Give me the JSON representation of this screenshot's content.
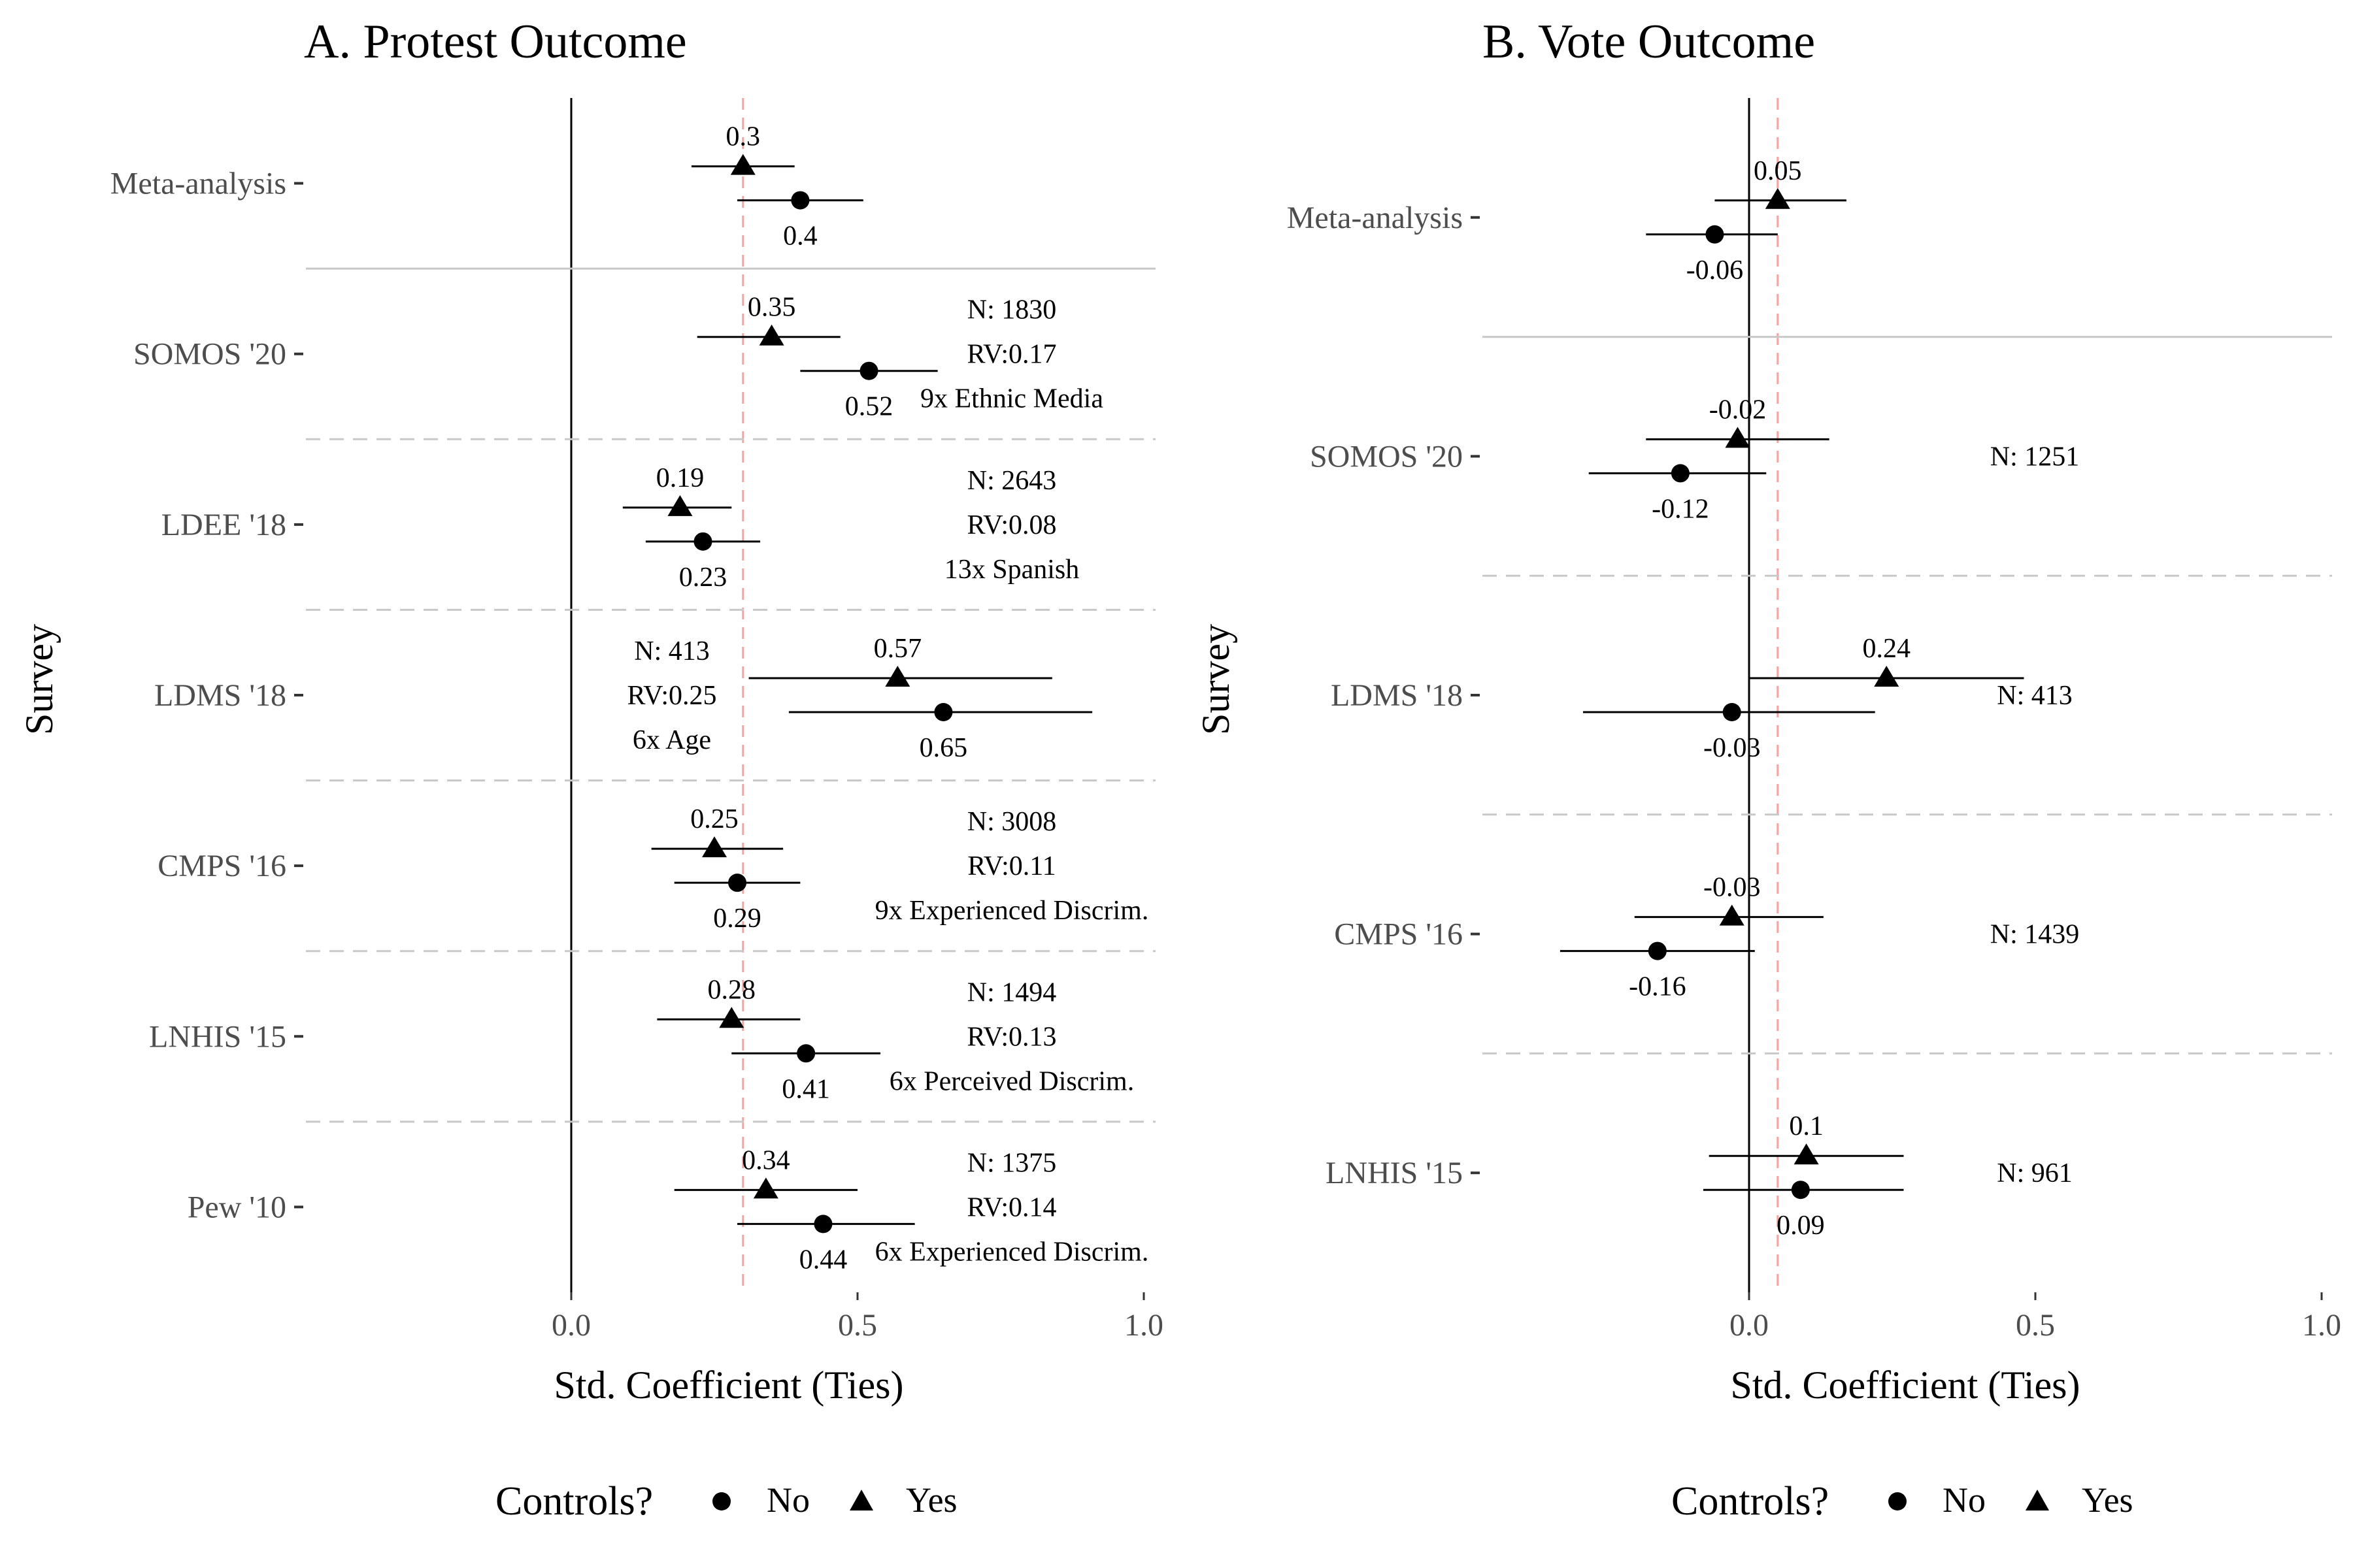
{
  "legend": {
    "title": "Controls?",
    "items": [
      {
        "label": "No",
        "shape": "circle"
      },
      {
        "label": "Yes",
        "shape": "triangle"
      }
    ]
  },
  "colors": {
    "points": "#000000",
    "reference_line": "#f4a3a3",
    "separator_solid": "#c8c8c8",
    "separator_dashed": "#c8c8c8",
    "zero_line": "#000000"
  },
  "chart_data": [
    {
      "type": "forest",
      "title": "A. Protest Outcome",
      "xlabel": "Std. Coefficient (Ties)",
      "ylabel": "Survey",
      "xlim": [
        -0.47,
        1.02
      ],
      "xticks": [
        "0.0",
        "0.5",
        "1.0"
      ],
      "reference_line": 0.3,
      "rows": [
        {
          "survey": "Meta-analysis",
          "yes": {
            "estimate": 0.3,
            "ci": [
              0.21,
              0.39
            ],
            "label": "0.3"
          },
          "no": {
            "estimate": 0.4,
            "ci": [
              0.29,
              0.51
            ],
            "label": "0.4"
          },
          "notes": []
        },
        {
          "survey": "SOMOS '20",
          "yes": {
            "estimate": 0.35,
            "ci": [
              0.22,
              0.47
            ],
            "label": "0.35"
          },
          "no": {
            "estimate": 0.52,
            "ci": [
              0.4,
              0.64
            ],
            "label": "0.52"
          },
          "notes": [
            "N: 1830",
            "RV:0.17",
            "9x Ethnic Media"
          ]
        },
        {
          "survey": "LDEE '18",
          "yes": {
            "estimate": 0.19,
            "ci": [
              0.09,
              0.28
            ],
            "label": "0.19"
          },
          "no": {
            "estimate": 0.23,
            "ci": [
              0.13,
              0.33
            ],
            "label": "0.23"
          },
          "notes": [
            "N: 2643",
            "RV:0.08",
            "13x Spanish"
          ]
        },
        {
          "survey": "LDMS '18",
          "yes": {
            "estimate": 0.57,
            "ci": [
              0.31,
              0.84
            ],
            "label": "0.57"
          },
          "no": {
            "estimate": 0.65,
            "ci": [
              0.38,
              0.91
            ],
            "label": "0.65"
          },
          "notes": [
            "N: 413",
            "RV:0.25",
            "6x Age"
          ]
        },
        {
          "survey": "CMPS '16",
          "yes": {
            "estimate": 0.25,
            "ci": [
              0.14,
              0.37
            ],
            "label": "0.25"
          },
          "no": {
            "estimate": 0.29,
            "ci": [
              0.18,
              0.4
            ],
            "label": "0.29"
          },
          "notes": [
            "N: 3008",
            "RV:0.11",
            "9x Experienced Discrim."
          ]
        },
        {
          "survey": "LNHIS '15",
          "yes": {
            "estimate": 0.28,
            "ci": [
              0.15,
              0.4
            ],
            "label": "0.28"
          },
          "no": {
            "estimate": 0.41,
            "ci": [
              0.28,
              0.54
            ],
            "label": "0.41"
          },
          "notes": [
            "N: 1494",
            "RV:0.13",
            "6x Perceived Discrim."
          ]
        },
        {
          "survey": "Pew '10",
          "yes": {
            "estimate": 0.34,
            "ci": [
              0.18,
              0.5
            ],
            "label": "0.34"
          },
          "no": {
            "estimate": 0.44,
            "ci": [
              0.29,
              0.6
            ],
            "label": "0.44"
          },
          "notes": [
            "N: 1375",
            "RV:0.14",
            "6x Experienced Discrim."
          ]
        }
      ]
    },
    {
      "type": "forest",
      "title": "B. Vote Outcome",
      "xlabel": "Std. Coefficient (Ties)",
      "ylabel": "Survey",
      "xlim": [
        -0.47,
        1.02
      ],
      "xticks": [
        "0.0",
        "0.5",
        "1.0"
      ],
      "reference_line": 0.05,
      "rows": [
        {
          "survey": "Meta-analysis",
          "yes": {
            "estimate": 0.05,
            "ci": [
              -0.06,
              0.17
            ],
            "label": "0.05"
          },
          "no": {
            "estimate": -0.06,
            "ci": [
              -0.18,
              0.05
            ],
            "label": "-0.06"
          },
          "notes": []
        },
        {
          "survey": "SOMOS '20",
          "yes": {
            "estimate": -0.02,
            "ci": [
              -0.18,
              0.14
            ],
            "label": "-0.02"
          },
          "no": {
            "estimate": -0.12,
            "ci": [
              -0.28,
              0.03
            ],
            "label": "-0.12"
          },
          "notes": [
            "N: 1251"
          ]
        },
        {
          "survey": "LDMS '18",
          "yes": {
            "estimate": 0.24,
            "ci": [
              0.0,
              0.48
            ],
            "label": "0.24"
          },
          "no": {
            "estimate": -0.03,
            "ci": [
              -0.29,
              0.22
            ],
            "label": "-0.03"
          },
          "notes": [
            "N: 413"
          ]
        },
        {
          "survey": "CMPS '16",
          "yes": {
            "estimate": -0.03,
            "ci": [
              -0.2,
              0.13
            ],
            "label": "-0.03"
          },
          "no": {
            "estimate": -0.16,
            "ci": [
              -0.33,
              0.01
            ],
            "label": "-0.16"
          },
          "notes": [
            "N: 1439"
          ]
        },
        {
          "survey": "LNHIS '15",
          "yes": {
            "estimate": 0.1,
            "ci": [
              -0.07,
              0.27
            ],
            "label": "0.1"
          },
          "no": {
            "estimate": 0.09,
            "ci": [
              -0.08,
              0.27
            ],
            "label": "0.09"
          },
          "notes": [
            "N: 961"
          ]
        }
      ]
    }
  ]
}
